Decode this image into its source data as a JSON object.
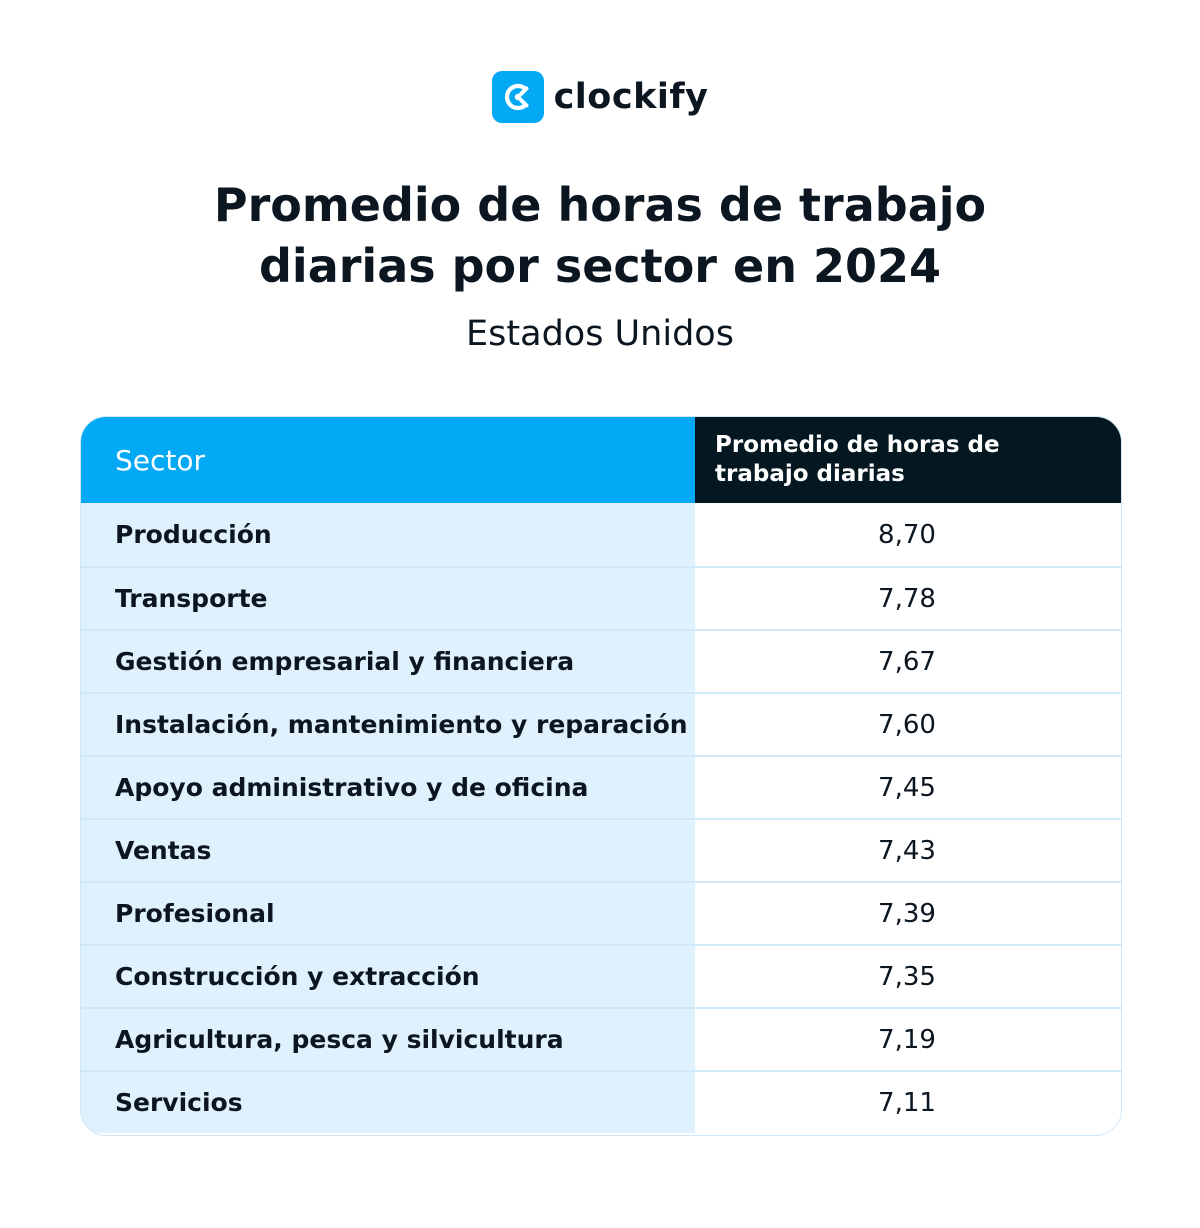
{
  "logo": {
    "text": "clockify",
    "brand_color": "#03a9f4"
  },
  "title": {
    "line1": "Promedio de horas de trabajo",
    "line2": "diarias por sector en 2024"
  },
  "subtitle": "Estados Unidos",
  "colors": {
    "header_sector_bg": "#03a9f4",
    "header_hours_bg": "#051821",
    "sector_cell_bg": "#dff1fc",
    "text": "#0b1621"
  },
  "chart_data": {
    "type": "table",
    "title": "Promedio de horas de trabajo diarias por sector en 2024",
    "subtitle": "Estados Unidos",
    "columns": [
      "Sector",
      "Promedio de horas de trabajo diarias"
    ],
    "rows": [
      {
        "sector": "Producción",
        "hours": "8,70"
      },
      {
        "sector": "Transporte",
        "hours": "7,78"
      },
      {
        "sector": "Gestión empresarial y financiera",
        "hours": "7,67"
      },
      {
        "sector": "Instalación, mantenimiento y reparación",
        "hours": "7,60"
      },
      {
        "sector": "Apoyo administrativo y de oficina",
        "hours": "7,45"
      },
      {
        "sector": "Ventas",
        "hours": "7,43"
      },
      {
        "sector": "Profesional",
        "hours": "7,39"
      },
      {
        "sector": "Construcción y extracción",
        "hours": "7,35"
      },
      {
        "sector": "Agricultura, pesca y silvicultura",
        "hours": "7,19"
      },
      {
        "sector": "Servicios",
        "hours": "7,11"
      }
    ]
  }
}
